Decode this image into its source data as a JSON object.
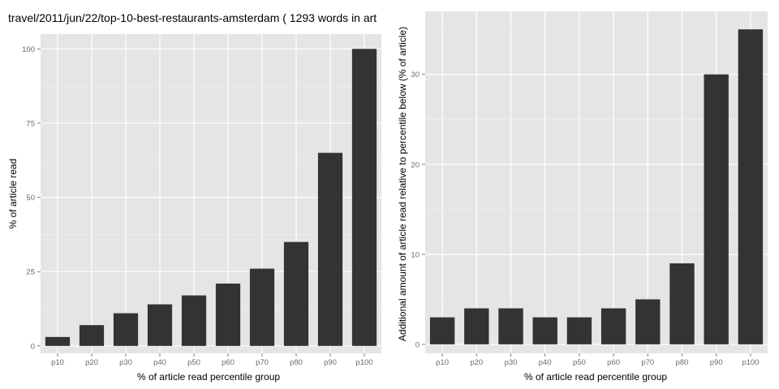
{
  "chart_data": [
    {
      "type": "bar",
      "title": "travel/2011/jun/22/top-10-best-restaurants-amsterdam ( 1293 words in art",
      "xlabel": "% of article read percentile group",
      "ylabel": "% of article read",
      "categories": [
        "p10",
        "p20",
        "p30",
        "p40",
        "p50",
        "p60",
        "p70",
        "p80",
        "p90",
        "p100"
      ],
      "values": [
        3,
        7,
        11,
        14,
        17,
        21,
        26,
        35,
        65,
        100
      ],
      "ylim": [
        -2.5,
        105
      ],
      "yticks": [
        0,
        25,
        50,
        75,
        100
      ],
      "grid": true,
      "bar_color": "#333333",
      "panel_color": "#e5e5e5"
    },
    {
      "type": "bar",
      "title": "",
      "xlabel": "% of article read percentile group",
      "ylabel": "Additional amount of article read relative to percentile below (% of article)",
      "categories": [
        "p10",
        "p20",
        "p30",
        "p40",
        "p50",
        "p60",
        "p70",
        "p80",
        "p90",
        "p100"
      ],
      "values": [
        3,
        4,
        4,
        3,
        3,
        4,
        5,
        9,
        30,
        35
      ],
      "ylim": [
        -1,
        37
      ],
      "yticks": [
        0,
        10,
        20,
        30
      ],
      "grid": true,
      "bar_color": "#333333",
      "panel_color": "#e5e5e5"
    }
  ]
}
